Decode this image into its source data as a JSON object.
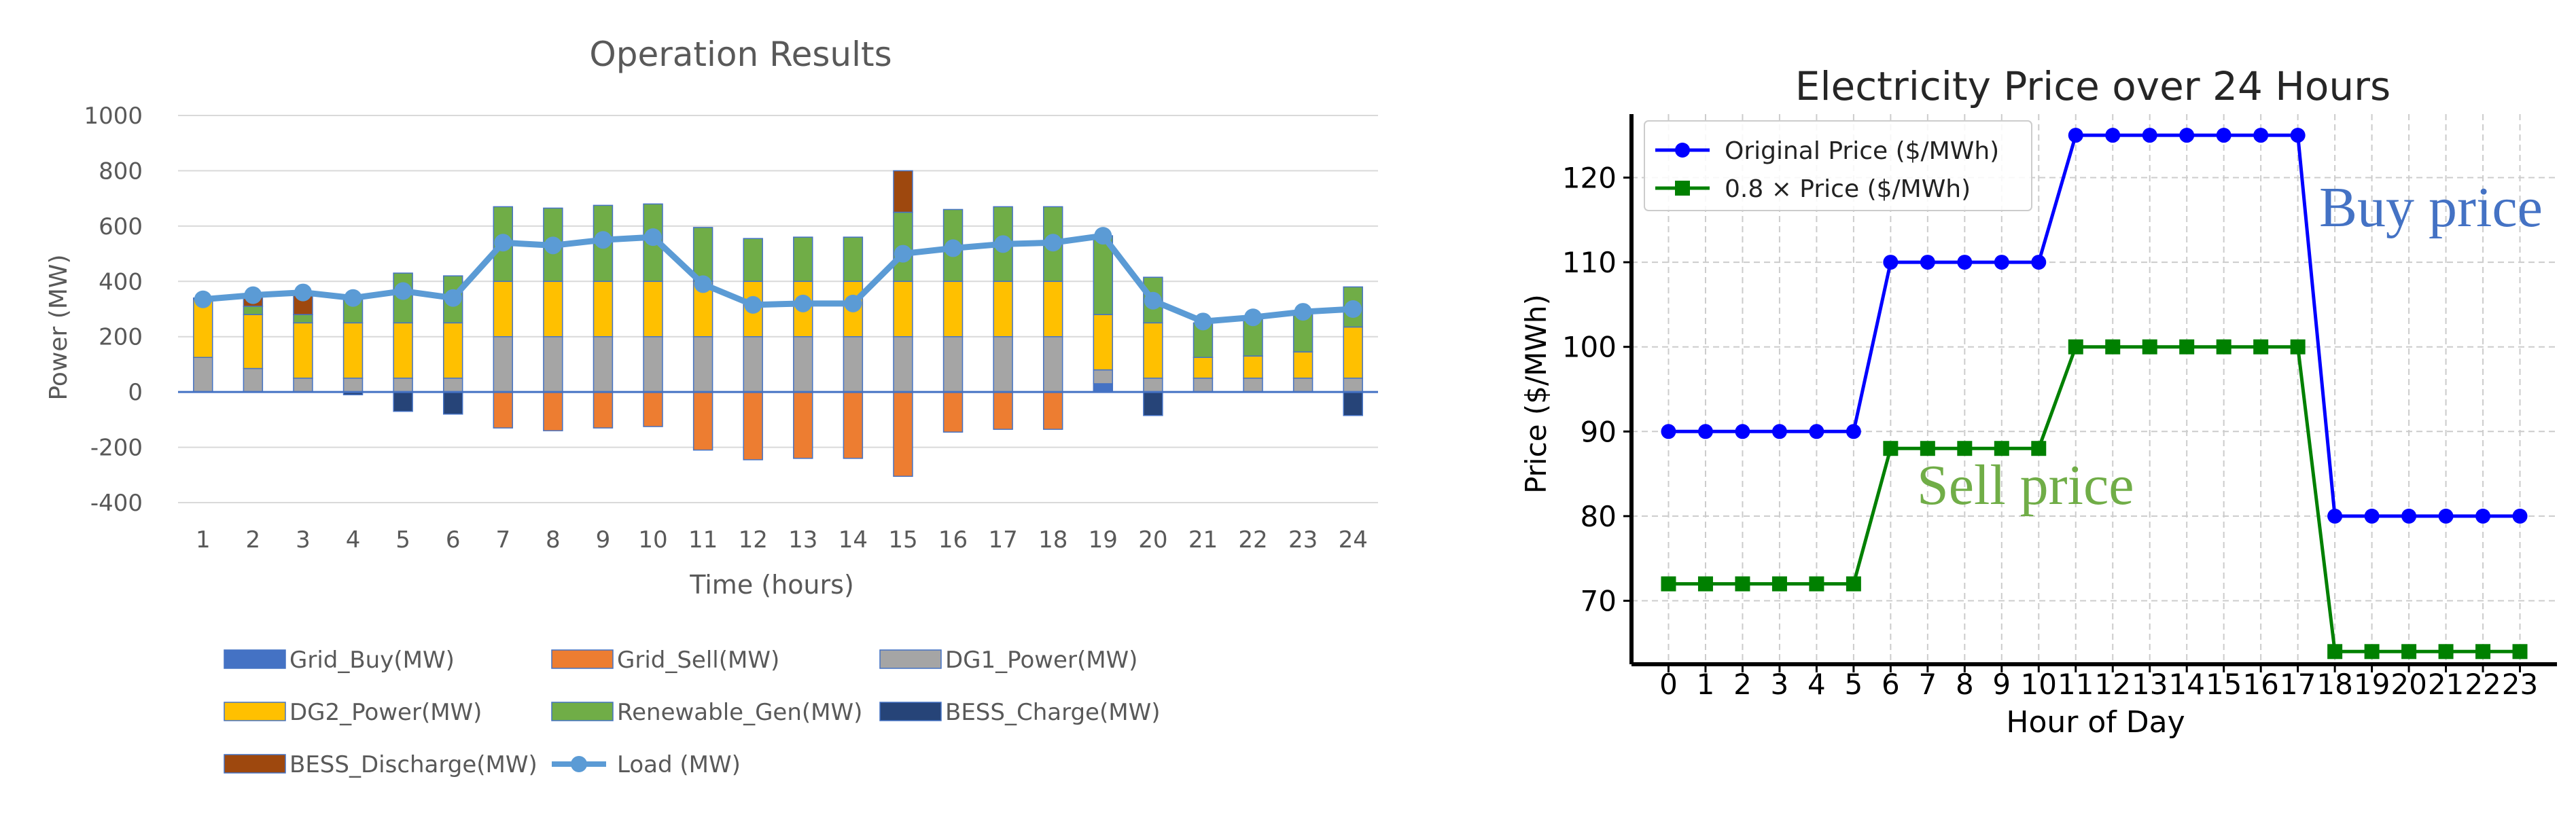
{
  "chart_data": [
    {
      "type": "bar",
      "stacked": true,
      "title": "Operation Results",
      "xlabel": "Time (hours)",
      "ylabel": "Power (MW)",
      "ylim": [
        -400,
        1000
      ],
      "yticks": [
        -400,
        -200,
        0,
        200,
        400,
        600,
        800,
        1000
      ],
      "ytick_labels": [
        "-400",
        "-200",
        "0",
        "200",
        "400",
        "600",
        "800",
        "1000"
      ],
      "grid": true,
      "legend_position": "bottom",
      "categories": [
        "1",
        "2",
        "3",
        "4",
        "5",
        "6",
        "7",
        "8",
        "9",
        "10",
        "11",
        "12",
        "13",
        "14",
        "15",
        "16",
        "17",
        "18",
        "19",
        "20",
        "21",
        "22",
        "23",
        "24"
      ],
      "series": [
        {
          "name": "Grid_Buy(MW)",
          "color": "#4472C4",
          "values": [
            0,
            0,
            0,
            0,
            0,
            0,
            0,
            0,
            0,
            0,
            0,
            0,
            0,
            0,
            0,
            0,
            0,
            0,
            30,
            0,
            0,
            0,
            0,
            0
          ]
        },
        {
          "name": "Grid_Sell(MW)",
          "color": "#ED7D31",
          "values": [
            0,
            0,
            0,
            0,
            0,
            0,
            -130,
            -140,
            -130,
            -125,
            -210,
            -245,
            -240,
            -240,
            -305,
            -145,
            -135,
            -135,
            0,
            0,
            0,
            0,
            0,
            0
          ]
        },
        {
          "name": "DG1_Power(MW)",
          "color": "#A5A5A5",
          "values": [
            125,
            85,
            50,
            50,
            50,
            50,
            200,
            200,
            200,
            200,
            200,
            200,
            200,
            200,
            200,
            200,
            200,
            200,
            50,
            50,
            50,
            50,
            50,
            50
          ]
        },
        {
          "name": "DG2_Power(MW)",
          "color": "#FFC000",
          "values": [
            210,
            195,
            200,
            200,
            200,
            200,
            200,
            200,
            200,
            200,
            200,
            200,
            200,
            200,
            200,
            200,
            200,
            200,
            200,
            200,
            75,
            80,
            95,
            185
          ]
        },
        {
          "name": "Renewable_Gen(MW)",
          "color": "#70AD47",
          "values": [
            5,
            30,
            30,
            85,
            180,
            170,
            270,
            265,
            275,
            280,
            195,
            155,
            160,
            160,
            250,
            260,
            270,
            270,
            285,
            165,
            125,
            135,
            145,
            145
          ]
        },
        {
          "name": "BESS_Charge(MW)",
          "color": "#264478",
          "values": [
            0,
            0,
            0,
            -10,
            -70,
            -80,
            0,
            0,
            0,
            0,
            0,
            0,
            0,
            0,
            0,
            0,
            0,
            0,
            0,
            -85,
            0,
            0,
            0,
            -85
          ]
        },
        {
          "name": "BESS_Discharge(MW)",
          "color": "#9E480E",
          "values": [
            0,
            45,
            70,
            0,
            0,
            0,
            0,
            0,
            0,
            0,
            0,
            0,
            0,
            0,
            150,
            0,
            0,
            0,
            0,
            0,
            0,
            0,
            0,
            0
          ]
        }
      ],
      "line_series": {
        "name": "Load (MW)",
        "color": "#5B9BD5",
        "values": [
          335,
          350,
          360,
          340,
          365,
          340,
          540,
          530,
          550,
          560,
          390,
          315,
          320,
          320,
          500,
          520,
          535,
          540,
          565,
          330,
          255,
          270,
          290,
          300
        ]
      }
    },
    {
      "type": "line",
      "title": "Electricity Price over 24 Hours",
      "xlabel": "Hour of Day",
      "ylabel": "Price ($/MWh)",
      "ylim": [
        62.5,
        127.5
      ],
      "xlim": [
        -1,
        24
      ],
      "yticks": [
        70,
        80,
        90,
        100,
        110,
        120
      ],
      "ytick_labels": [
        "70",
        "80",
        "90",
        "100",
        "110",
        "120"
      ],
      "grid": true,
      "legend_position": "top-left",
      "x": [
        0,
        1,
        2,
        3,
        4,
        5,
        6,
        7,
        8,
        9,
        10,
        11,
        12,
        13,
        14,
        15,
        16,
        17,
        18,
        19,
        20,
        21,
        22,
        23
      ],
      "xtick_labels": [
        "0",
        "1",
        "2",
        "3",
        "4",
        "5",
        "6",
        "7",
        "8",
        "9",
        "10",
        "11",
        "12",
        "13",
        "14",
        "15",
        "16",
        "17",
        "18",
        "19",
        "20",
        "21",
        "22",
        "23"
      ],
      "series": [
        {
          "name": "Original Price ($/MWh)",
          "color": "#0000FF",
          "marker": "circle",
          "values": [
            90,
            90,
            90,
            90,
            90,
            90,
            110,
            110,
            110,
            110,
            110,
            125,
            125,
            125,
            125,
            125,
            125,
            125,
            80,
            80,
            80,
            80,
            80,
            80
          ]
        },
        {
          "name": "0.8 × Price ($/MWh)",
          "color": "#008000",
          "marker": "square",
          "values": [
            72,
            72,
            72,
            72,
            72,
            72,
            88,
            88,
            88,
            88,
            88,
            100,
            100,
            100,
            100,
            100,
            100,
            100,
            64,
            64,
            64,
            64,
            64,
            64
          ]
        }
      ],
      "annotations": [
        {
          "text": "Buy price",
          "color": "#4472C4"
        },
        {
          "text": "Sell price",
          "color": "#70AD47"
        }
      ]
    }
  ]
}
